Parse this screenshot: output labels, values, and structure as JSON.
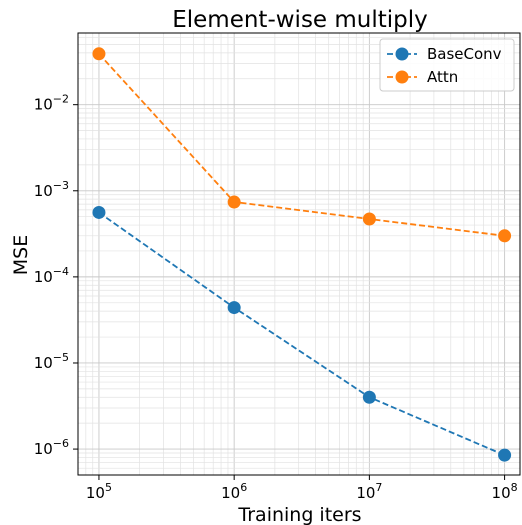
{
  "chart_data": {
    "type": "line",
    "title": "Element-wise multiply",
    "xlabel": "Training iters",
    "ylabel": "MSE",
    "x_scale": "log",
    "y_scale": "log",
    "x": [
      100000,
      1000000,
      10000000,
      100000000
    ],
    "x_tick_labels": [
      {
        "base": "10",
        "exp": "5"
      },
      {
        "base": "10",
        "exp": "6"
      },
      {
        "base": "10",
        "exp": "7"
      },
      {
        "base": "10",
        "exp": "8"
      }
    ],
    "y_tick_labels": [
      {
        "base": "10",
        "exp": "−6"
      },
      {
        "base": "10",
        "exp": "−5"
      },
      {
        "base": "10",
        "exp": "−4"
      },
      {
        "base": "10",
        "exp": "−3"
      },
      {
        "base": "10",
        "exp": "−2"
      }
    ],
    "xlim": [
      70000,
      130000000
    ],
    "ylim": [
      5e-07,
      0.068
    ],
    "grid": true,
    "legend_position": "top-right",
    "series": [
      {
        "name": "BaseConv",
        "color": "#1f77b4",
        "values": [
          0.00056,
          4.4e-05,
          4e-06,
          8.5e-07
        ]
      },
      {
        "name": "Attn",
        "color": "#ff7f0e",
        "values": [
          0.039,
          0.00074,
          0.00047,
          0.0003
        ]
      }
    ]
  }
}
